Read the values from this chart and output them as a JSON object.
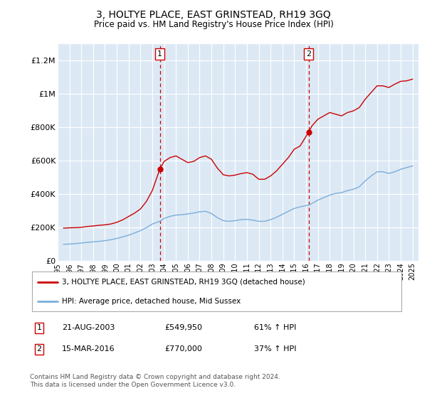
{
  "title": "3, HOLTYE PLACE, EAST GRINSTEAD, RH19 3GQ",
  "subtitle": "Price paid vs. HM Land Registry's House Price Index (HPI)",
  "legend_line1": "3, HOLTYE PLACE, EAST GRINSTEAD, RH19 3GQ (detached house)",
  "legend_line2": "HPI: Average price, detached house, Mid Sussex",
  "table_row1": [
    "1",
    "21-AUG-2003",
    "£549,950",
    "61% ↑ HPI"
  ],
  "table_row2": [
    "2",
    "15-MAR-2016",
    "£770,000",
    "37% ↑ HPI"
  ],
  "footnote": "Contains HM Land Registry data © Crown copyright and database right 2024.\nThis data is licensed under the Open Government Licence v3.0.",
  "ylim": [
    0,
    1300000
  ],
  "yticks": [
    0,
    200000,
    400000,
    600000,
    800000,
    1000000,
    1200000
  ],
  "ytick_labels": [
    "£0",
    "£200K",
    "£400K",
    "£600K",
    "£800K",
    "£1M",
    "£1.2M"
  ],
  "marker1_x": 2003.64,
  "marker2_x": 2016.21,
  "marker1_y": 549950,
  "marker2_y": 770000,
  "bg_color": "#dce9f5",
  "red_color": "#cc0000",
  "blue_color": "#7aaddb",
  "marker_box_color": "#cc0000",
  "vline_color": "#cc0000",
  "red_x": [
    1995.5,
    1996,
    1996.5,
    1997,
    1997.5,
    1998,
    1998.5,
    1999,
    1999.5,
    2000,
    2000.5,
    2001,
    2001.5,
    2002,
    2002.5,
    2003,
    2003.64,
    2004,
    2004.5,
    2005,
    2005.5,
    2006,
    2006.5,
    2007,
    2007.5,
    2008,
    2008.5,
    2009,
    2009.5,
    2010,
    2010.5,
    2011,
    2011.5,
    2012,
    2012.5,
    2013,
    2013.5,
    2014,
    2014.5,
    2015,
    2015.5,
    2016.21,
    2016.5,
    2017,
    2017.5,
    2018,
    2018.5,
    2019,
    2019.5,
    2020,
    2020.5,
    2021,
    2021.5,
    2022,
    2022.5,
    2023,
    2023.5,
    2024,
    2024.5,
    2025
  ],
  "red_y": [
    195000,
    197000,
    198000,
    200000,
    205000,
    208000,
    212000,
    215000,
    220000,
    230000,
    245000,
    265000,
    285000,
    310000,
    355000,
    420000,
    549950,
    595000,
    618000,
    628000,
    608000,
    588000,
    595000,
    618000,
    628000,
    608000,
    555000,
    515000,
    508000,
    513000,
    522000,
    528000,
    518000,
    488000,
    488000,
    508000,
    538000,
    578000,
    618000,
    668000,
    688000,
    770000,
    808000,
    848000,
    868000,
    888000,
    878000,
    868000,
    888000,
    898000,
    918000,
    968000,
    1008000,
    1048000,
    1048000,
    1038000,
    1058000,
    1075000,
    1078000,
    1088000
  ],
  "blue_x": [
    1995.5,
    1996,
    1996.5,
    1997,
    1997.5,
    1998,
    1998.5,
    1999,
    1999.5,
    2000,
    2000.5,
    2001,
    2001.5,
    2002,
    2002.5,
    2003,
    2003.64,
    2004,
    2004.5,
    2005,
    2005.5,
    2006,
    2006.5,
    2007,
    2007.5,
    2008,
    2008.5,
    2009,
    2009.5,
    2010,
    2010.5,
    2011,
    2011.5,
    2012,
    2012.5,
    2013,
    2013.5,
    2014,
    2014.5,
    2015,
    2015.5,
    2016.21,
    2016.5,
    2017,
    2017.5,
    2018,
    2018.5,
    2019,
    2019.5,
    2020,
    2020.5,
    2021,
    2021.5,
    2022,
    2022.5,
    2023,
    2023.5,
    2024,
    2024.5,
    2025
  ],
  "blue_y": [
    98000,
    100000,
    102000,
    106000,
    110000,
    113000,
    116000,
    120000,
    126000,
    133000,
    143000,
    153000,
    166000,
    180000,
    198000,
    220000,
    236000,
    253000,
    266000,
    273000,
    276000,
    280000,
    286000,
    293000,
    296000,
    283000,
    258000,
    240000,
    236000,
    240000,
    246000,
    248000,
    243000,
    236000,
    236000,
    246000,
    260000,
    278000,
    296000,
    313000,
    323000,
    333000,
    343000,
    363000,
    378000,
    393000,
    403000,
    408000,
    420000,
    428000,
    443000,
    478000,
    508000,
    533000,
    533000,
    523000,
    533000,
    548000,
    558000,
    568000
  ],
  "xlim": [
    1995,
    2025.5
  ],
  "xticks": [
    1995,
    1996,
    1997,
    1998,
    1999,
    2000,
    2001,
    2002,
    2003,
    2004,
    2005,
    2006,
    2007,
    2008,
    2009,
    2010,
    2011,
    2012,
    2013,
    2014,
    2015,
    2016,
    2017,
    2018,
    2019,
    2020,
    2021,
    2022,
    2023,
    2024,
    2025
  ]
}
